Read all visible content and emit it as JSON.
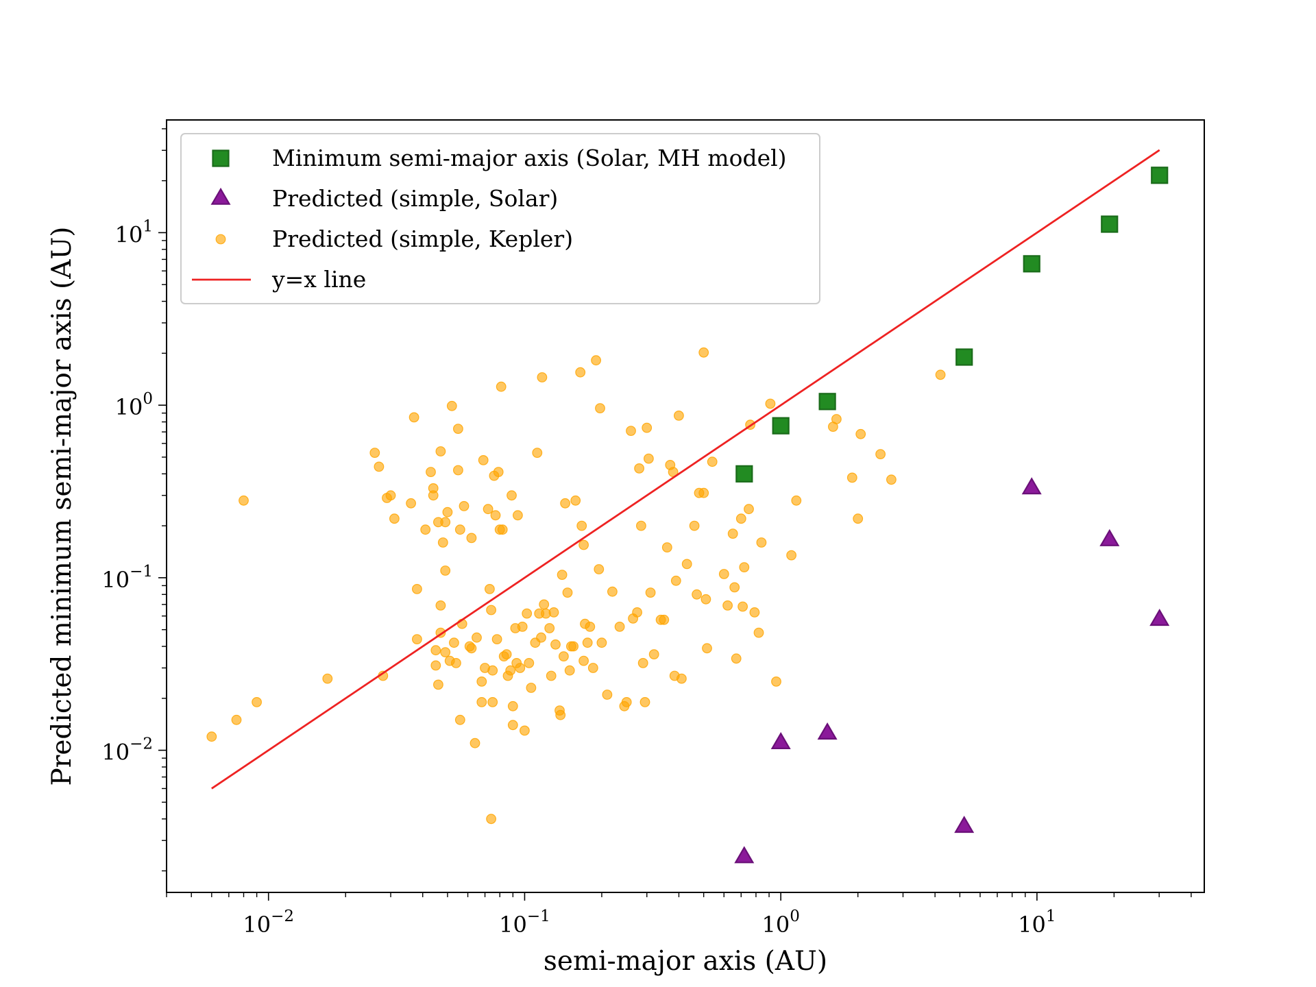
{
  "chart_data": {
    "type": "scatter",
    "xscale": "log",
    "yscale": "log",
    "xlim": [
      0.004,
      45
    ],
    "ylim": [
      0.0015,
      45
    ],
    "xlabel": "semi-major axis (AU)",
    "ylabel": "Predicted minimum semi-major axis (AU)",
    "xticks": [
      {
        "base": "10",
        "exp": "−2",
        "value": 0.01
      },
      {
        "base": "10",
        "exp": "−1",
        "value": 0.1
      },
      {
        "base": "10",
        "exp": "0",
        "value": 1
      },
      {
        "base": "10",
        "exp": "1",
        "value": 10
      }
    ],
    "yticks": [
      {
        "base": "10",
        "exp": "−2",
        "value": 0.01
      },
      {
        "base": "10",
        "exp": "−1",
        "value": 0.1
      },
      {
        "base": "10",
        "exp": "0",
        "value": 1
      },
      {
        "base": "10",
        "exp": "1",
        "value": 10
      }
    ],
    "legend_position": "top-left",
    "series": [
      {
        "name": "Minimum semi-major axis (Solar, MH model)",
        "marker": "square",
        "color": "#228b22",
        "edge": "#1a6b1a",
        "points": [
          [
            0.72,
            0.4
          ],
          [
            1.0,
            0.76
          ],
          [
            1.52,
            1.05
          ],
          [
            5.2,
            1.9
          ],
          [
            9.54,
            6.6
          ],
          [
            19.2,
            11.2
          ],
          [
            30.1,
            21.5
          ]
        ]
      },
      {
        "name": "Predicted (simple, Solar)",
        "marker": "triangle",
        "color": "#8b1a9a",
        "edge": "#6a1078",
        "points": [
          [
            0.72,
            0.0024
          ],
          [
            1.0,
            0.011
          ],
          [
            1.52,
            0.0125
          ],
          [
            5.2,
            0.0036
          ],
          [
            9.54,
            0.33
          ],
          [
            19.2,
            0.165
          ],
          [
            30.1,
            0.057
          ]
        ]
      },
      {
        "name": "Predicted (simple, Kepler)",
        "marker": "circle",
        "color": "#ffa500",
        "points": [
          [
            0.006,
            0.012
          ],
          [
            0.0075,
            0.015
          ],
          [
            0.008,
            0.28
          ],
          [
            0.009,
            0.019
          ],
          [
            0.017,
            0.026
          ],
          [
            0.028,
            0.027
          ],
          [
            0.026,
            0.53
          ],
          [
            0.027,
            0.44
          ],
          [
            0.029,
            0.29
          ],
          [
            0.03,
            0.3
          ],
          [
            0.031,
            0.22
          ],
          [
            0.036,
            0.27
          ],
          [
            0.037,
            0.85
          ],
          [
            0.038,
            0.086
          ],
          [
            0.038,
            0.044
          ],
          [
            0.041,
            0.19
          ],
          [
            0.043,
            0.41
          ],
          [
            0.044,
            0.33
          ],
          [
            0.044,
            0.3
          ],
          [
            0.045,
            0.038
          ],
          [
            0.045,
            0.031
          ],
          [
            0.046,
            0.21
          ],
          [
            0.046,
            0.024
          ],
          [
            0.047,
            0.54
          ],
          [
            0.047,
            0.069
          ],
          [
            0.047,
            0.048
          ],
          [
            0.048,
            0.16
          ],
          [
            0.049,
            0.11
          ],
          [
            0.049,
            0.037
          ],
          [
            0.049,
            0.21
          ],
          [
            0.05,
            0.24
          ],
          [
            0.051,
            0.033
          ],
          [
            0.052,
            0.99
          ],
          [
            0.053,
            0.042
          ],
          [
            0.054,
            0.032
          ],
          [
            0.055,
            0.42
          ],
          [
            0.055,
            0.73
          ],
          [
            0.056,
            0.19
          ],
          [
            0.056,
            0.015
          ],
          [
            0.057,
            0.054
          ],
          [
            0.058,
            0.26
          ],
          [
            0.061,
            0.04
          ],
          [
            0.062,
            0.17
          ],
          [
            0.062,
            0.039
          ],
          [
            0.064,
            0.011
          ],
          [
            0.065,
            0.045
          ],
          [
            0.068,
            0.019
          ],
          [
            0.068,
            0.025
          ],
          [
            0.069,
            0.48
          ],
          [
            0.07,
            0.03
          ],
          [
            0.072,
            0.25
          ],
          [
            0.073,
            0.086
          ],
          [
            0.074,
            0.004
          ],
          [
            0.074,
            0.065
          ],
          [
            0.075,
            0.029
          ],
          [
            0.075,
            0.019
          ],
          [
            0.076,
            0.39
          ],
          [
            0.077,
            0.23
          ],
          [
            0.078,
            0.044
          ],
          [
            0.079,
            0.41
          ],
          [
            0.08,
            0.19
          ],
          [
            0.081,
            1.28
          ],
          [
            0.082,
            0.19
          ],
          [
            0.083,
            0.035
          ],
          [
            0.085,
            0.036
          ],
          [
            0.086,
            0.027
          ],
          [
            0.088,
            0.029
          ],
          [
            0.089,
            0.3
          ],
          [
            0.09,
            0.018
          ],
          [
            0.09,
            0.014
          ],
          [
            0.092,
            0.051
          ],
          [
            0.093,
            0.032
          ],
          [
            0.094,
            0.23
          ],
          [
            0.096,
            0.03
          ],
          [
            0.098,
            0.052
          ],
          [
            0.1,
            0.013
          ],
          [
            0.102,
            0.062
          ],
          [
            0.104,
            0.032
          ],
          [
            0.106,
            0.023
          ],
          [
            0.11,
            0.042
          ],
          [
            0.112,
            0.53
          ],
          [
            0.114,
            0.062
          ],
          [
            0.116,
            0.045
          ],
          [
            0.117,
            1.45
          ],
          [
            0.119,
            0.07
          ],
          [
            0.121,
            0.062
          ],
          [
            0.125,
            0.051
          ],
          [
            0.127,
            0.027
          ],
          [
            0.13,
            0.063
          ],
          [
            0.132,
            0.041
          ],
          [
            0.137,
            0.017
          ],
          [
            0.138,
            0.016
          ],
          [
            0.14,
            0.104
          ],
          [
            0.142,
            0.035
          ],
          [
            0.144,
            0.27
          ],
          [
            0.147,
            0.082
          ],
          [
            0.15,
            0.029
          ],
          [
            0.152,
            0.04
          ],
          [
            0.155,
            0.04
          ],
          [
            0.158,
            0.28
          ],
          [
            0.165,
            1.55
          ],
          [
            0.167,
            0.2
          ],
          [
            0.17,
            0.033
          ],
          [
            0.17,
            0.155
          ],
          [
            0.172,
            0.054
          ],
          [
            0.176,
            0.042
          ],
          [
            0.18,
            0.052
          ],
          [
            0.185,
            0.03
          ],
          [
            0.19,
            1.82
          ],
          [
            0.195,
            0.112
          ],
          [
            0.197,
            0.96
          ],
          [
            0.2,
            0.042
          ],
          [
            0.21,
            0.021
          ],
          [
            0.22,
            0.083
          ],
          [
            0.235,
            0.052
          ],
          [
            0.245,
            0.018
          ],
          [
            0.25,
            0.019
          ],
          [
            0.26,
            0.71
          ],
          [
            0.265,
            0.058
          ],
          [
            0.275,
            0.063
          ],
          [
            0.28,
            0.43
          ],
          [
            0.285,
            0.2
          ],
          [
            0.29,
            0.032
          ],
          [
            0.295,
            0.019
          ],
          [
            0.3,
            0.74
          ],
          [
            0.305,
            0.49
          ],
          [
            0.31,
            0.082
          ],
          [
            0.32,
            0.036
          ],
          [
            0.34,
            0.057
          ],
          [
            0.35,
            0.057
          ],
          [
            0.36,
            0.15
          ],
          [
            0.37,
            0.45
          ],
          [
            0.38,
            0.41
          ],
          [
            0.385,
            0.027
          ],
          [
            0.39,
            0.096
          ],
          [
            0.4,
            0.87
          ],
          [
            0.41,
            0.026
          ],
          [
            0.43,
            0.12
          ],
          [
            0.46,
            0.2
          ],
          [
            0.47,
            0.08
          ],
          [
            0.48,
            0.31
          ],
          [
            0.5,
            0.31
          ],
          [
            0.5,
            2.02
          ],
          [
            0.51,
            0.075
          ],
          [
            0.515,
            0.039
          ],
          [
            0.54,
            0.47
          ],
          [
            0.6,
            0.105
          ],
          [
            0.62,
            0.069
          ],
          [
            0.65,
            0.18
          ],
          [
            0.66,
            0.088
          ],
          [
            0.67,
            0.034
          ],
          [
            0.7,
            0.22
          ],
          [
            0.71,
            0.068
          ],
          [
            0.72,
            0.115
          ],
          [
            0.75,
            0.25
          ],
          [
            0.76,
            0.77
          ],
          [
            0.79,
            0.063
          ],
          [
            0.82,
            0.048
          ],
          [
            0.84,
            0.16
          ],
          [
            0.91,
            1.02
          ],
          [
            0.96,
            0.025
          ],
          [
            1.1,
            0.135
          ],
          [
            1.15,
            0.28
          ],
          [
            1.6,
            0.75
          ],
          [
            1.65,
            0.83
          ],
          [
            1.9,
            0.38
          ],
          [
            2.0,
            0.22
          ],
          [
            2.05,
            0.68
          ],
          [
            2.45,
            0.52
          ],
          [
            2.7,
            0.37
          ],
          [
            4.2,
            1.5
          ]
        ]
      },
      {
        "name": "y=x line",
        "marker": "line",
        "color": "#ee2222",
        "points": [
          [
            0.006,
            0.006
          ],
          [
            30.1,
            30.1
          ]
        ]
      }
    ]
  }
}
